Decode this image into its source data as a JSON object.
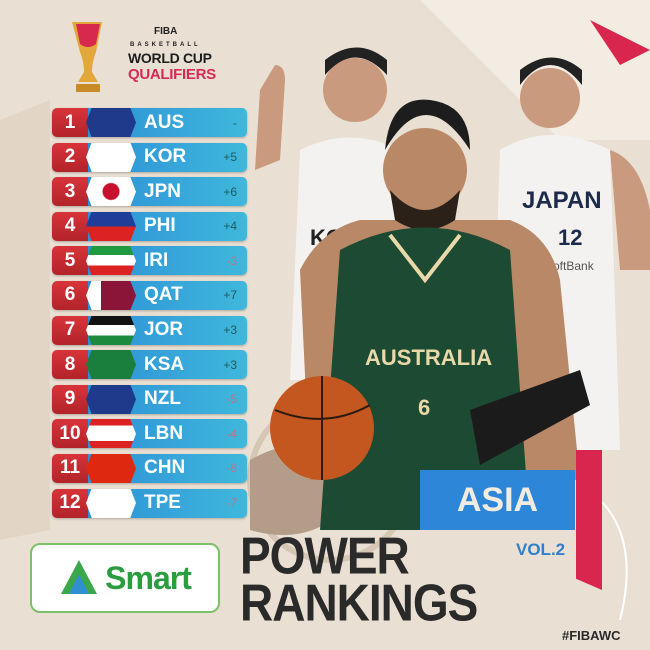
{
  "logo": {
    "org": "FIBA",
    "line1": "BASKETBALL",
    "line2": "WORLD CUP",
    "line3": "QUALIFIERS"
  },
  "rankings": [
    {
      "rank": "1",
      "team": "AUS",
      "change": "-",
      "flag": "australia"
    },
    {
      "rank": "2",
      "team": "KOR",
      "change": "+5",
      "flag": "south-korea"
    },
    {
      "rank": "3",
      "team": "JPN",
      "change": "+6",
      "flag": "japan"
    },
    {
      "rank": "4",
      "team": "PHI",
      "change": "+4",
      "flag": "philippines"
    },
    {
      "rank": "5",
      "team": "IRI",
      "change": "-3",
      "flag": "iran"
    },
    {
      "rank": "6",
      "team": "QAT",
      "change": "+7",
      "flag": "qatar"
    },
    {
      "rank": "7",
      "team": "JOR",
      "change": "+3",
      "flag": "jordan"
    },
    {
      "rank": "8",
      "team": "KSA",
      "change": "+3",
      "flag": "saudi-arabia"
    },
    {
      "rank": "9",
      "team": "NZL",
      "change": "-5",
      "flag": "new-zealand"
    },
    {
      "rank": "10",
      "team": "LBN",
      "change": "-4",
      "flag": "lebanon"
    },
    {
      "rank": "11",
      "team": "CHN",
      "change": "-8",
      "flag": "china"
    },
    {
      "rank": "12",
      "team": "TPE",
      "change": "-7",
      "flag": "chinese-taipei"
    }
  ],
  "players": {
    "korea_jersey": "KOREA",
    "australia_jersey": "AUSTRALIA",
    "australia_number": "6",
    "japan_jersey": "JAPAN",
    "japan_number": "12",
    "japan_sponsor": "SoftBank"
  },
  "region": "ASIA",
  "sponsor": "Smart",
  "title": {
    "line1": "POWER",
    "line2": "RANKINGS",
    "volume": "VOL.2"
  },
  "hashtag": "#FIBAWC",
  "colors": {
    "rank_red": "#c62b32",
    "team_blue": "#2d8fd6",
    "asia_blue": "#2e86d8",
    "accent_pink": "#d8264e",
    "background": "#e9dfd2",
    "smart_green": "#2a9d3e"
  }
}
